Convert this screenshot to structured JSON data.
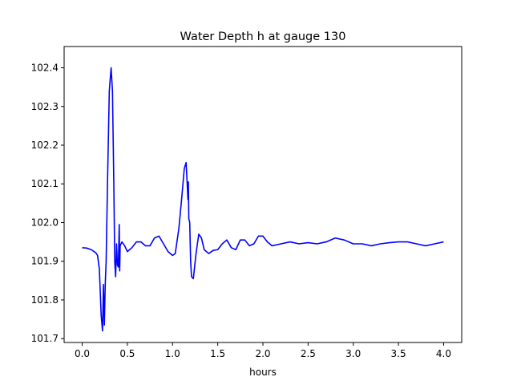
{
  "chart_data": {
    "type": "line",
    "title": "Water Depth h at gauge 130",
    "xlabel": "hours",
    "ylabel": "",
    "xlim": [
      -0.2,
      4.2
    ],
    "ylim": [
      101.69,
      102.455
    ],
    "x_ticks": [
      0.0,
      0.5,
      1.0,
      1.5,
      2.0,
      2.5,
      3.0,
      3.5,
      4.0
    ],
    "x_tick_labels": [
      "0.0",
      "0.5",
      "1.0",
      "1.5",
      "2.0",
      "2.5",
      "3.0",
      "3.5",
      "4.0"
    ],
    "y_ticks": [
      101.7,
      101.8,
      101.9,
      102.0,
      102.1,
      102.2,
      102.3,
      102.4
    ],
    "y_tick_labels": [
      "101.7",
      "101.8",
      "101.9",
      "102.0",
      "102.1",
      "102.2",
      "102.3",
      "102.4"
    ],
    "grid": false,
    "legend": "none",
    "series": [
      {
        "color": "#0000ff",
        "points": [
          [
            0.0,
            101.935
          ],
          [
            0.05,
            101.934
          ],
          [
            0.1,
            101.93
          ],
          [
            0.15,
            101.922
          ],
          [
            0.17,
            101.915
          ],
          [
            0.19,
            101.88
          ],
          [
            0.21,
            101.76
          ],
          [
            0.225,
            101.72
          ],
          [
            0.235,
            101.84
          ],
          [
            0.245,
            101.735
          ],
          [
            0.255,
            101.84
          ],
          [
            0.265,
            101.9
          ],
          [
            0.28,
            102.1
          ],
          [
            0.3,
            102.34
          ],
          [
            0.32,
            102.4
          ],
          [
            0.335,
            102.34
          ],
          [
            0.35,
            102.1
          ],
          [
            0.36,
            101.9
          ],
          [
            0.37,
            101.86
          ],
          [
            0.38,
            101.945
          ],
          [
            0.39,
            101.89
          ],
          [
            0.4,
            101.885
          ],
          [
            0.41,
            101.995
          ],
          [
            0.415,
            101.875
          ],
          [
            0.42,
            101.94
          ],
          [
            0.44,
            101.95
          ],
          [
            0.47,
            101.94
          ],
          [
            0.5,
            101.925
          ],
          [
            0.55,
            101.935
          ],
          [
            0.6,
            101.95
          ],
          [
            0.65,
            101.95
          ],
          [
            0.7,
            101.94
          ],
          [
            0.75,
            101.94
          ],
          [
            0.8,
            101.96
          ],
          [
            0.85,
            101.965
          ],
          [
            0.9,
            101.945
          ],
          [
            0.95,
            101.925
          ],
          [
            1.0,
            101.915
          ],
          [
            1.03,
            101.92
          ],
          [
            1.07,
            101.985
          ],
          [
            1.1,
            102.06
          ],
          [
            1.13,
            102.14
          ],
          [
            1.15,
            102.155
          ],
          [
            1.16,
            102.11
          ],
          [
            1.17,
            102.06
          ],
          [
            1.175,
            102.105
          ],
          [
            1.18,
            102.01
          ],
          [
            1.19,
            102.0
          ],
          [
            1.2,
            101.9
          ],
          [
            1.21,
            101.86
          ],
          [
            1.23,
            101.855
          ],
          [
            1.26,
            101.92
          ],
          [
            1.29,
            101.97
          ],
          [
            1.32,
            101.96
          ],
          [
            1.35,
            101.93
          ],
          [
            1.4,
            101.92
          ],
          [
            1.45,
            101.928
          ],
          [
            1.5,
            101.93
          ],
          [
            1.55,
            101.945
          ],
          [
            1.6,
            101.955
          ],
          [
            1.65,
            101.935
          ],
          [
            1.7,
            101.93
          ],
          [
            1.75,
            101.955
          ],
          [
            1.8,
            101.955
          ],
          [
            1.85,
            101.94
          ],
          [
            1.9,
            101.945
          ],
          [
            1.95,
            101.965
          ],
          [
            2.0,
            101.965
          ],
          [
            2.05,
            101.95
          ],
          [
            2.1,
            101.94
          ],
          [
            2.2,
            101.945
          ],
          [
            2.3,
            101.95
          ],
          [
            2.4,
            101.945
          ],
          [
            2.5,
            101.948
          ],
          [
            2.6,
            101.945
          ],
          [
            2.7,
            101.95
          ],
          [
            2.8,
            101.96
          ],
          [
            2.9,
            101.955
          ],
          [
            3.0,
            101.945
          ],
          [
            3.1,
            101.945
          ],
          [
            3.2,
            101.94
          ],
          [
            3.3,
            101.945
          ],
          [
            3.4,
            101.948
          ],
          [
            3.5,
            101.95
          ],
          [
            3.6,
            101.95
          ],
          [
            3.7,
            101.945
          ],
          [
            3.8,
            101.94
          ],
          [
            3.9,
            101.945
          ],
          [
            4.0,
            101.95
          ]
        ]
      }
    ]
  }
}
